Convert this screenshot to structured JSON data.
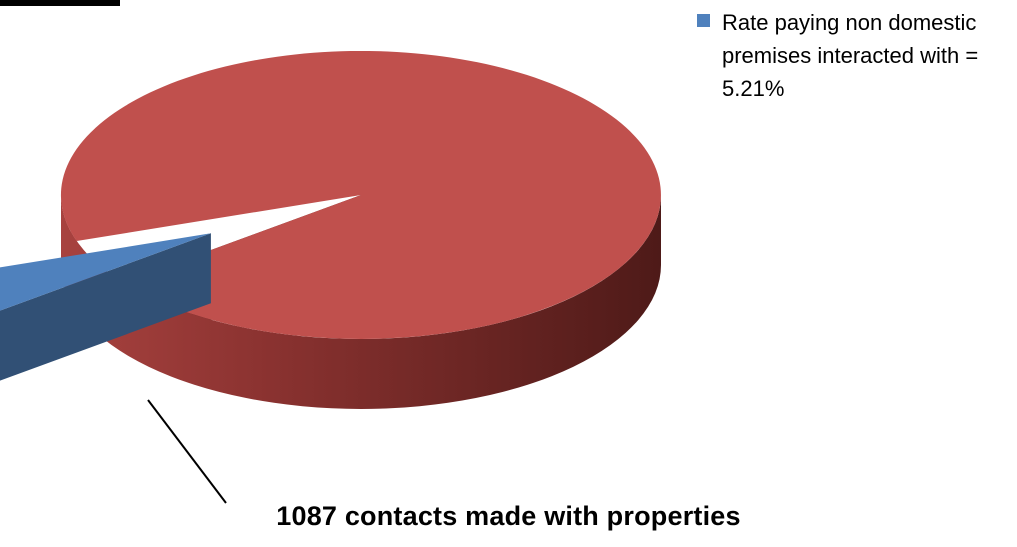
{
  "chart_data": {
    "type": "pie",
    "style": "3d-exploded",
    "slices": [
      {
        "name": "Rate paying non domestic premises interacted with = 5.21%",
        "value": 5.21,
        "color": "#4f81bd",
        "exploded": true,
        "in_legend": true
      },
      {
        "name": "",
        "value": 94.79,
        "color": "#c0504d",
        "exploded": false,
        "in_legend": false
      }
    ],
    "legend": {
      "position": "top-right",
      "label": "Rate paying non domestic premises interacted with = 5.21%"
    },
    "annotations": [
      {
        "text": "1087 contacts made with properties",
        "points_to": "Rate paying non domestic premises interacted with = 5.21%"
      }
    ]
  }
}
